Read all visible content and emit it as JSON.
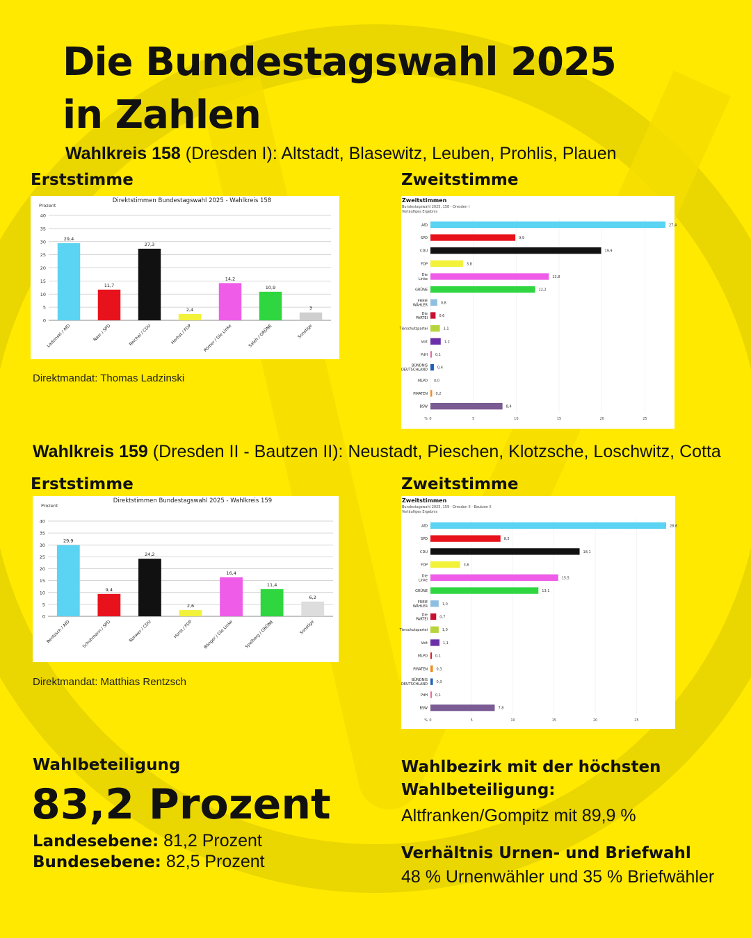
{
  "header": {
    "title_line1": "Die Bundestagswahl 2025",
    "title_line2": "in Zahlen"
  },
  "wk158": {
    "label": "Wahlkreis 158",
    "area": " (Dresden I): Altstadt, Blasewitz, Leuben, Prohlis, Plauen",
    "erst_heading": "Erststimme",
    "zweit_heading": "Zweitstimme",
    "direktmandat": "Direktmandat: Thomas Ladzinski"
  },
  "wk159": {
    "label": "Wahlkreis 159",
    "area": " (Dresden II - Bautzen II): Neustadt, Pieschen, Klotzsche, Loschwitz, Cotta",
    "erst_heading": "Erststimme",
    "zweit_heading": "Zweitstimme",
    "direktmandat": "Direktmandat: Matthias Rentzsch"
  },
  "turnout": {
    "label": "Wahlbeteiligung",
    "value": "83,2 Prozent",
    "land_label": "Landesebene:",
    "land_value": " 81,2 Prozent",
    "bund_label": "Bundesebene:",
    "bund_value": " 82,5 Prozent"
  },
  "highest": {
    "label_line1": "Wahlbezirk mit der höchsten",
    "label_line2": "Wahlbeteiligung:",
    "value": "Altfranken/Gompitz mit 89,9 %"
  },
  "ratio": {
    "label": "Verhältnis Urnen- und Briefwahl",
    "value": "48 % Urnenwähler und 35 % Briefwähler"
  },
  "colors": {
    "background": "#ffe900",
    "afd": "#5bd3f2",
    "spd": "#e8121c",
    "cdu": "#111111",
    "fdp": "#f2f23a",
    "linke": "#ee5ce8",
    "gruene": "#2fd640",
    "freie_waehler": "#8fbfe0",
    "partei": "#c8102e",
    "tierschutz": "#b8d43c",
    "volt": "#6b2fa8",
    "pdh": "#e46aa2",
    "buendnis_dtl": "#1f5fb8",
    "mlpd": "#d62020",
    "piraten": "#f08c1e",
    "bsw": "#7b5b93",
    "sonstige": "#cfcfcf"
  },
  "chart_data": [
    {
      "type": "bar",
      "title": "Direktstimmen Bundestagswahl 2025 - Wahlkreis 158",
      "ylabel": "Prozent",
      "ylim": [
        0,
        40
      ],
      "yticks": [
        "0",
        "5",
        "10",
        "15",
        "20",
        "25",
        "30",
        "35",
        "40"
      ],
      "grid": true,
      "categories": [
        "Ladzinski / AfD",
        "Nasr / SPD",
        "Reichel / CDU",
        "Herbst / FDP",
        "Römer / Die Linke",
        "Saleh / GRÜNE",
        "Sonstige"
      ],
      "values": [
        29.4,
        11.7,
        27.3,
        2.4,
        14.2,
        10.9,
        3
      ],
      "value_labels": [
        "29,4",
        "11,7",
        "27,3",
        "2,4",
        "14,2",
        "10,9",
        "3"
      ],
      "colors": [
        "#5bd3f2",
        "#e8121c",
        "#111111",
        "#f2f23a",
        "#ee5ce8",
        "#2fd640",
        "#cfcfcf"
      ]
    },
    {
      "type": "bar",
      "orientation": "horizontal",
      "title": "Zweitstimmen",
      "subtitle1": "Bundestagswahl 2025, 158 - Dresden I",
      "subtitle2": "Vorläufiges Ergebnis",
      "xlabel": "%",
      "xlim": [
        0,
        27.4
      ],
      "xticks": [
        "0",
        "5",
        "10",
        "15",
        "20",
        "25"
      ],
      "categories": [
        "AfD",
        "SPD",
        "CDU",
        "FDP",
        "Die Linke",
        "GRÜNE",
        "FREIE WÄHLER",
        "Die PARTEI",
        "Tierschutzpartei",
        "Volt",
        "PdH",
        "BÜNDNIS DEUTSCHLAND",
        "MLPD",
        "PIRATEN",
        "BSW"
      ],
      "values": [
        27.4,
        9.9,
        19.9,
        3.8,
        13.8,
        12.2,
        0.8,
        0.6,
        1.1,
        1.2,
        0.1,
        0.4,
        0.0,
        0.2,
        8.4
      ],
      "value_labels": [
        "27,4",
        "9,9",
        "19,9",
        "3,8",
        "13,8",
        "12,2",
        "0,8",
        "0,6",
        "1,1",
        "1,2",
        "0,1",
        "0,4",
        "0,0",
        "0,2",
        "8,4"
      ],
      "colors": [
        "#5bd3f2",
        "#e8121c",
        "#111111",
        "#f2f23a",
        "#ee5ce8",
        "#2fd640",
        "#8fbfe0",
        "#c8102e",
        "#b8d43c",
        "#6b2fa8",
        "#e46aa2",
        "#1f5fb8",
        "#d62020",
        "#f08c1e",
        "#7b5b93"
      ]
    },
    {
      "type": "bar",
      "title": "Direktstimmen Bundestagswahl 2025 - Wahlkreis 159",
      "ylabel": "Prozent",
      "ylim": [
        0,
        40
      ],
      "yticks": [
        "0",
        "5",
        "10",
        "15",
        "20",
        "25",
        "30",
        "35",
        "40"
      ],
      "grid": true,
      "categories": [
        "Rentzsch / AfD",
        "Schuhmann / SPD",
        "Rohwer / CDU",
        "Horst / FDP",
        "Bönger / Die Linke",
        "Spelberg / GRÜNE",
        "Sonstige"
      ],
      "values": [
        29.9,
        9.4,
        24.2,
        2.6,
        16.4,
        11.4,
        6.2
      ],
      "value_labels": [
        "29,9",
        "9,4",
        "24,2",
        "2,6",
        "16,4",
        "11,4",
        "6,2"
      ],
      "colors": [
        "#5bd3f2",
        "#e8121c",
        "#111111",
        "#f2f23a",
        "#ee5ce8",
        "#2fd640",
        "#dddddd"
      ]
    },
    {
      "type": "bar",
      "orientation": "horizontal",
      "title": "Zweitstimmen",
      "subtitle1": "Bundestagswahl 2025, 159 - Dresden II - Bautzen II",
      "subtitle2": "Vorläufiges Ergebnis",
      "xlabel": "%",
      "xlim": [
        0,
        28.6
      ],
      "xticks": [
        "0",
        "5",
        "10",
        "15",
        "20",
        "25"
      ],
      "categories": [
        "AfD",
        "SPD",
        "CDU",
        "FDP",
        "Die Linke",
        "GRÜNE",
        "FREIE WÄHLER",
        "Die PARTEI",
        "Tierschutzpartei",
        "Volt",
        "MLPD",
        "PIRATEN",
        "BÜNDNIS DEUTSCHLAND",
        "PdH",
        "BSW"
      ],
      "values": [
        28.6,
        8.5,
        18.1,
        3.6,
        15.5,
        13.1,
        1.0,
        0.7,
        1.0,
        1.1,
        0.1,
        0.3,
        0.3,
        0.1,
        7.8
      ],
      "value_labels": [
        "28,6",
        "8,5",
        "18,1",
        "3,6",
        "15,5",
        "13,1",
        "1,0",
        "0,7",
        "1,0",
        "1,1",
        "0,1",
        "0,3",
        "0,3",
        "0,1",
        "7,8"
      ],
      "colors": [
        "#5bd3f2",
        "#e8121c",
        "#111111",
        "#f2f23a",
        "#ee5ce8",
        "#2fd640",
        "#8fbfe0",
        "#c8102e",
        "#b8d43c",
        "#6b2fa8",
        "#d62020",
        "#f08c1e",
        "#1f5fb8",
        "#e46aa2",
        "#7b5b93"
      ]
    }
  ]
}
